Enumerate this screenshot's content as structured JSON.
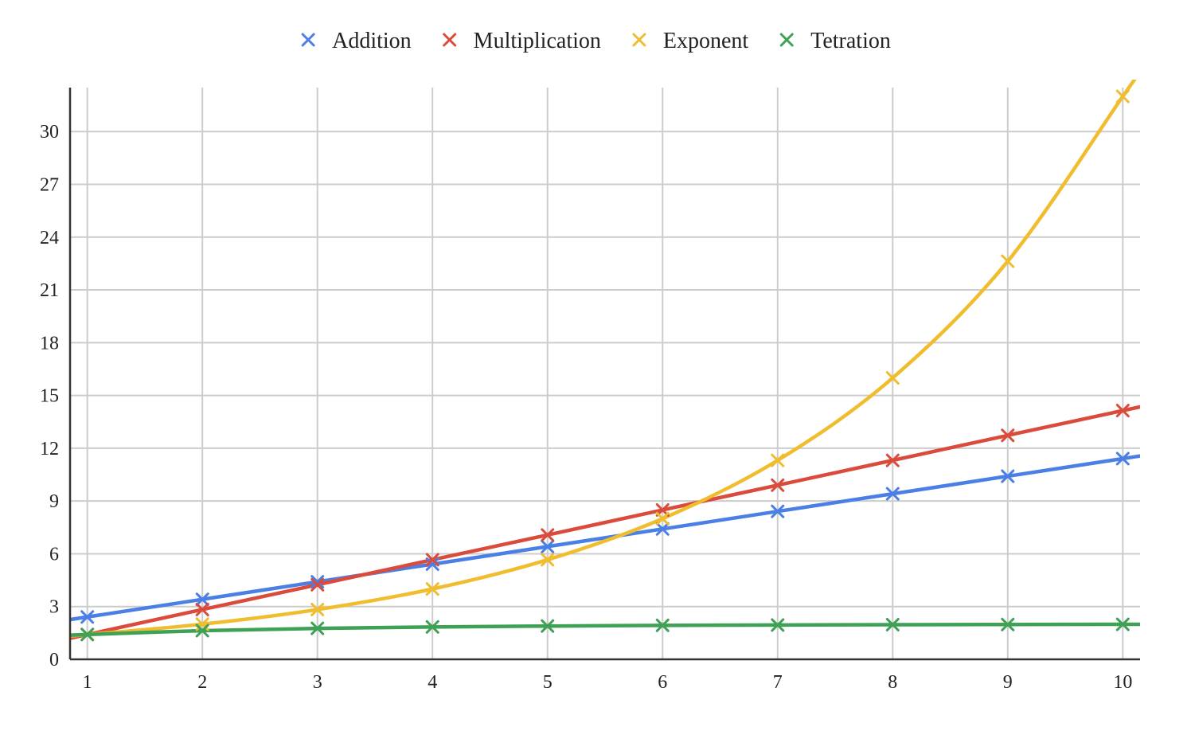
{
  "chart_data": {
    "type": "line",
    "x": [
      1,
      2,
      3,
      4,
      5,
      6,
      7,
      8,
      9,
      10
    ],
    "xticks": [
      "1",
      "2",
      "3",
      "4",
      "5",
      "6",
      "7",
      "8",
      "9",
      "10"
    ],
    "yticks": [
      "0",
      "3",
      "6",
      "9",
      "12",
      "15",
      "18",
      "21",
      "24",
      "27",
      "30"
    ],
    "ylim": [
      0,
      32.5
    ],
    "xlim": [
      0.85,
      10.15
    ],
    "grid": true,
    "legend_position": "top",
    "marker": "x",
    "series": [
      {
        "name": "Addition",
        "color": "#4a7fe6",
        "values": [
          2.41,
          3.41,
          4.41,
          5.41,
          6.41,
          7.41,
          8.41,
          9.41,
          10.41,
          11.41
        ]
      },
      {
        "name": "Multiplication",
        "color": "#db4b3c",
        "values": [
          1.41,
          2.83,
          4.24,
          5.66,
          7.07,
          8.49,
          9.9,
          11.31,
          12.73,
          14.14
        ]
      },
      {
        "name": "Exponent",
        "color": "#f0bd2e",
        "values": [
          1.41,
          2.0,
          2.83,
          4.0,
          5.66,
          8.0,
          11.31,
          16.0,
          22.63,
          32.0
        ]
      },
      {
        "name": "Tetration",
        "color": "#3ea155",
        "values": [
          1.41,
          1.63,
          1.76,
          1.84,
          1.89,
          1.93,
          1.95,
          1.97,
          1.98,
          1.99
        ]
      }
    ]
  }
}
